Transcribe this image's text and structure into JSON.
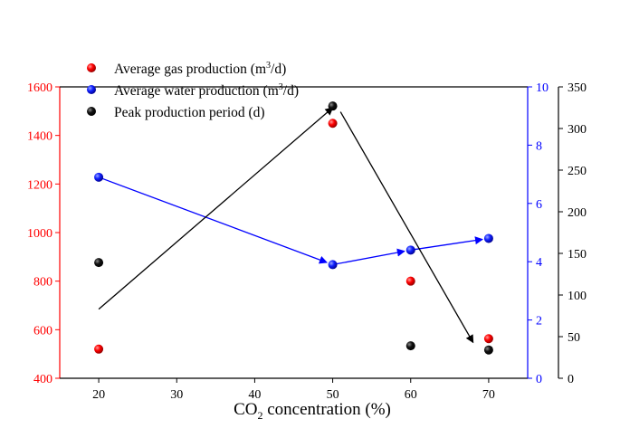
{
  "chart_data": {
    "type": "scatter",
    "xlabel_main": "CO",
    "xlabel_sub": "2",
    "xlabel_rest": " concentration (%)",
    "x_ticks": [
      20,
      30,
      40,
      50,
      60,
      70
    ],
    "xlim": [
      15,
      75
    ],
    "axes": {
      "left": {
        "color": "#ff0000",
        "ylim": [
          400,
          1600
        ],
        "ticks": [
          400,
          600,
          800,
          1000,
          1200,
          1400,
          1600
        ]
      },
      "right1": {
        "color": "#0000ff",
        "ylim": [
          0,
          10
        ],
        "ticks": [
          0,
          2,
          4,
          6,
          8,
          10
        ]
      },
      "right2": {
        "color": "#000000",
        "ylim": [
          0,
          350
        ],
        "ticks": [
          0,
          50,
          100,
          150,
          200,
          250,
          300,
          350
        ]
      }
    },
    "series": [
      {
        "name": "gas",
        "label_pre": "Average gas production (m",
        "label_sup": "3",
        "label_post": "/d)",
        "axis": "left",
        "color": "#ff0000",
        "x": [
          20,
          50,
          60,
          70
        ],
        "values": [
          520,
          1450,
          800,
          563
        ],
        "connect": false
      },
      {
        "name": "water",
        "label_pre": "Average water production (m",
        "label_sup": "3",
        "label_post": "/d)",
        "axis": "right1",
        "color": "#0000ff",
        "x": [
          20,
          50,
          60,
          70
        ],
        "values": [
          6.9,
          3.9,
          4.4,
          4.8
        ],
        "connect": true
      },
      {
        "name": "peak",
        "label_pre": "Peak production period (d)",
        "label_sup": "",
        "label_post": "",
        "axis": "right2",
        "color": "#000000",
        "x": [
          20,
          50,
          60,
          70
        ],
        "values": [
          139,
          327,
          39,
          34
        ],
        "connect": false
      }
    ],
    "arrows": [
      {
        "from": [
          20,
          83
        ],
        "to": [
          50,
          325
        ],
        "axis": "right2"
      },
      {
        "from": [
          51,
          320
        ],
        "to": [
          68,
          43
        ],
        "axis": "right2"
      }
    ]
  }
}
